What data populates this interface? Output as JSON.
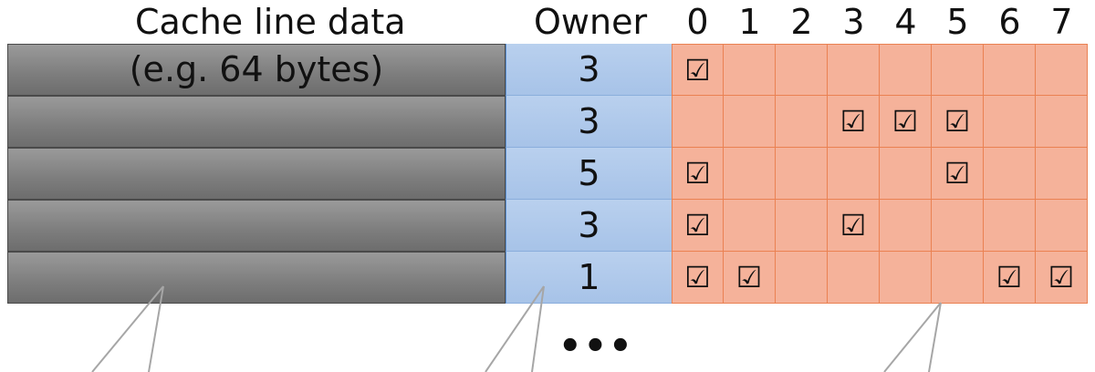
{
  "headers": {
    "data_label": "Cache line data",
    "owner_label": "Owner",
    "bit_columns": [
      "0",
      "1",
      "2",
      "3",
      "4",
      "5",
      "6",
      "7"
    ]
  },
  "rows": [
    {
      "data": "(e.g. 64 bytes)",
      "owner": "3",
      "bits": [
        1,
        0,
        0,
        0,
        0,
        0,
        0,
        0
      ]
    },
    {
      "data": "",
      "owner": "3",
      "bits": [
        0,
        0,
        0,
        1,
        1,
        1,
        0,
        0
      ]
    },
    {
      "data": "",
      "owner": "5",
      "bits": [
        1,
        0,
        0,
        0,
        0,
        1,
        0,
        0
      ]
    },
    {
      "data": "",
      "owner": "3",
      "bits": [
        1,
        0,
        0,
        1,
        0,
        0,
        0,
        0
      ]
    },
    {
      "data": "",
      "owner": "1",
      "bits": [
        1,
        1,
        0,
        0,
        0,
        0,
        1,
        1
      ]
    }
  ],
  "check_glyph": "☑",
  "ellipsis": "•••",
  "colors": {
    "data": "#808080",
    "owner": "#a9c4e8",
    "bits": "#f5b29a",
    "bit_border": "#ea8152",
    "callout_line": "#a6a6a6"
  }
}
